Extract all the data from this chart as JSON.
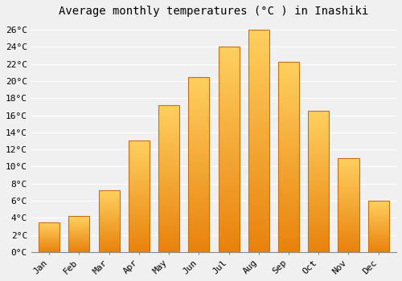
{
  "title": "Average monthly temperatures (°C ) in Inashiki",
  "months": [
    "Jan",
    "Feb",
    "Mar",
    "Apr",
    "May",
    "Jun",
    "Jul",
    "Aug",
    "Sep",
    "Oct",
    "Nov",
    "Dec"
  ],
  "values": [
    3.5,
    4.2,
    7.2,
    13.0,
    17.2,
    20.5,
    24.0,
    26.0,
    22.2,
    16.5,
    11.0,
    6.0
  ],
  "bar_color_bottom": "#E8820C",
  "bar_color_top": "#FFD060",
  "bar_edge_color": "#C87010",
  "ylim": [
    0,
    27
  ],
  "yticks": [
    0,
    2,
    4,
    6,
    8,
    10,
    12,
    14,
    16,
    18,
    20,
    22,
    24,
    26
  ],
  "ytick_labels": [
    "0°C",
    "2°C",
    "4°C",
    "6°C",
    "8°C",
    "10°C",
    "12°C",
    "14°C",
    "16°C",
    "18°C",
    "20°C",
    "22°C",
    "24°C",
    "26°C"
  ],
  "background_color": "#f0f0f0",
  "plot_bg_color": "#f0f0f0",
  "grid_color": "#ffffff",
  "title_fontsize": 10,
  "tick_fontsize": 8,
  "font_family": "monospace",
  "bar_width": 0.7
}
